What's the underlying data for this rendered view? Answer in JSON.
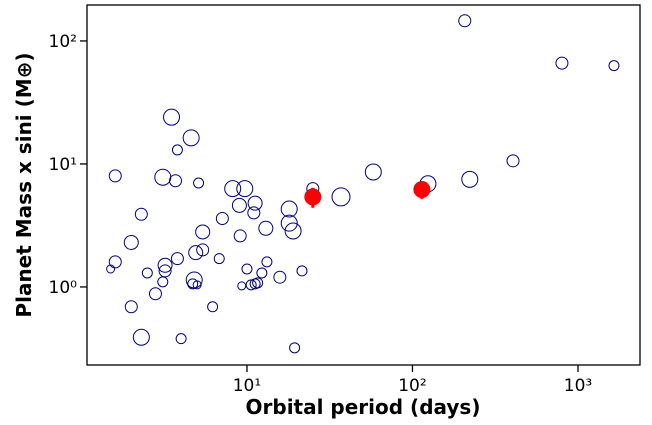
{
  "chart_data": {
    "type": "scatter",
    "x_label": "Orbital period (days)",
    "y_label": "Planet Mass x sini (M⊕)",
    "xscale": "log",
    "yscale": "log",
    "xlim": [
      1.08,
      2370
    ],
    "ylim": [
      0.232,
      196
    ],
    "xticks": [
      {
        "value": 10,
        "label": "10¹"
      },
      {
        "value": 100,
        "label": "10²"
      },
      {
        "value": 1000,
        "label": "10³"
      }
    ],
    "yticks": [
      {
        "value": 1,
        "label": "10⁰"
      },
      {
        "value": 10,
        "label": "10¹"
      },
      {
        "value": 100,
        "label": "10²"
      }
    ],
    "series": [
      {
        "color": "#000080",
        "filled": false,
        "x": [
          207,
          800,
          1650,
          3.5,
          4.6,
          3.8,
          1.6,
          3.1,
          3.7,
          5.1,
          8.2,
          9.7,
          25,
          9.0,
          11.2,
          11,
          7.1,
          2.3,
          18,
          18,
          19,
          37,
          58,
          124,
          222,
          405,
          13,
          9.1,
          2.0,
          5.4,
          5.4,
          4.9,
          3.8,
          6.8,
          1.6,
          3.2,
          3.2,
          2.5,
          1.5,
          13.2,
          10,
          12.3,
          15.8,
          21.5,
          4.8,
          3.1,
          4.7,
          5.0,
          9.3,
          10.6,
          11.2,
          11.6,
          2.8,
          2.0,
          6.2,
          2.3,
          4.0,
          19.4
        ],
        "values": [
          146,
          66,
          63,
          24,
          16.3,
          13,
          8.0,
          7.8,
          7.3,
          7.0,
          6.3,
          6.3,
          6.3,
          4.6,
          4.8,
          4.0,
          3.6,
          3.9,
          4.3,
          3.3,
          2.85,
          5.4,
          8.6,
          6.9,
          7.5,
          10.6,
          3.0,
          2.6,
          2.3,
          2.8,
          2.0,
          1.9,
          1.7,
          1.7,
          1.6,
          1.5,
          1.35,
          1.3,
          1.4,
          1.6,
          1.4,
          1.3,
          1.2,
          1.35,
          1.14,
          1.1,
          1.06,
          1.04,
          1.02,
          1.04,
          1.06,
          1.08,
          0.88,
          0.69,
          0.69,
          0.39,
          0.38,
          0.32
        ],
        "sizes": [
          6,
          6,
          5,
          8,
          8,
          5,
          6,
          8,
          6,
          5,
          8,
          8,
          6,
          7,
          7,
          6,
          6,
          6,
          8,
          8,
          8,
          9,
          8,
          8,
          8,
          6,
          7,
          6,
          7,
          7,
          6,
          7,
          6,
          5,
          6,
          7,
          6,
          5,
          4,
          5,
          5,
          5,
          6,
          5,
          8,
          5,
          5,
          4,
          4,
          5,
          5,
          5,
          6,
          6,
          5,
          8,
          5,
          5
        ]
      },
      {
        "color": "#ff0000",
        "filled": true,
        "x": [
          25,
          114
        ],
        "values": [
          5.4,
          6.2
        ],
        "errors": [
          1.0,
          1.0
        ],
        "sizes": [
          8,
          8
        ]
      }
    ]
  }
}
